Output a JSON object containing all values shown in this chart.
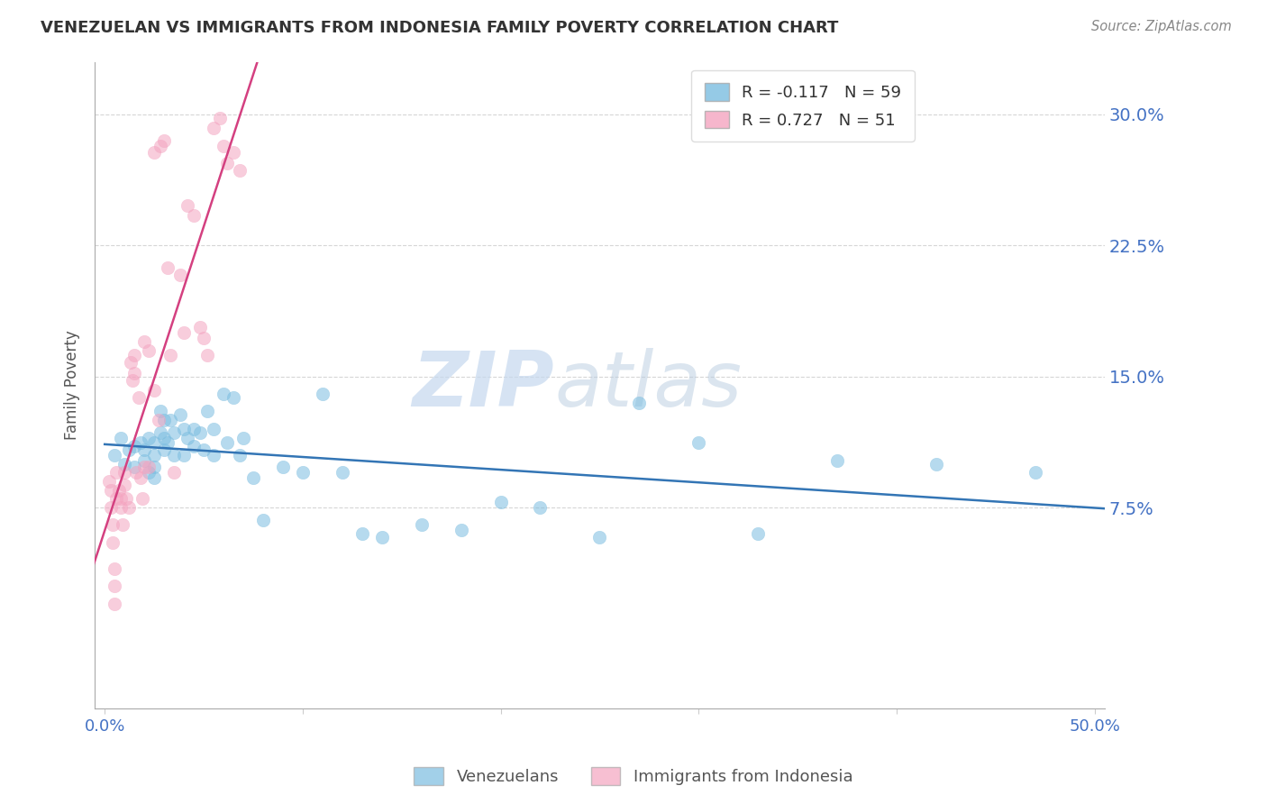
{
  "title": "VENEZUELAN VS IMMIGRANTS FROM INDONESIA FAMILY POVERTY CORRELATION CHART",
  "source": "Source: ZipAtlas.com",
  "ylabel": "Family Poverty",
  "y_ticks": [
    0.075,
    0.15,
    0.225,
    0.3
  ],
  "y_tick_labels": [
    "7.5%",
    "15.0%",
    "22.5%",
    "30.0%"
  ],
  "xlim": [
    -0.005,
    0.505
  ],
  "ylim": [
    -0.04,
    0.33
  ],
  "legend_label1": "Venezuelans",
  "legend_label2": "Immigrants from Indonesia",
  "legend_r1": "R = -0.117",
  "legend_n1": "N = 59",
  "legend_r2": "R = 0.727",
  "legend_n2": "N = 51",
  "watermark1": "ZIP",
  "watermark2": "atlas",
  "blue_color": "#7bbde0",
  "pink_color": "#f4a4c0",
  "blue_line_color": "#3375b5",
  "pink_line_color": "#d44080",
  "venezuelan_x": [
    0.005,
    0.008,
    0.01,
    0.012,
    0.015,
    0.015,
    0.018,
    0.02,
    0.02,
    0.022,
    0.022,
    0.025,
    0.025,
    0.025,
    0.025,
    0.028,
    0.028,
    0.03,
    0.03,
    0.03,
    0.032,
    0.033,
    0.035,
    0.035,
    0.038,
    0.04,
    0.04,
    0.042,
    0.045,
    0.045,
    0.048,
    0.05,
    0.052,
    0.055,
    0.055,
    0.06,
    0.062,
    0.065,
    0.068,
    0.07,
    0.075,
    0.08,
    0.09,
    0.1,
    0.11,
    0.12,
    0.13,
    0.14,
    0.16,
    0.18,
    0.2,
    0.22,
    0.25,
    0.27,
    0.3,
    0.33,
    0.37,
    0.42,
    0.47
  ],
  "venezuelan_y": [
    0.105,
    0.115,
    0.1,
    0.108,
    0.11,
    0.098,
    0.112,
    0.108,
    0.102,
    0.095,
    0.115,
    0.112,
    0.105,
    0.098,
    0.092,
    0.13,
    0.118,
    0.125,
    0.115,
    0.108,
    0.112,
    0.125,
    0.118,
    0.105,
    0.128,
    0.12,
    0.105,
    0.115,
    0.12,
    0.11,
    0.118,
    0.108,
    0.13,
    0.12,
    0.105,
    0.14,
    0.112,
    0.138,
    0.105,
    0.115,
    0.092,
    0.068,
    0.098,
    0.095,
    0.14,
    0.095,
    0.06,
    0.058,
    0.065,
    0.062,
    0.078,
    0.075,
    0.058,
    0.135,
    0.112,
    0.06,
    0.102,
    0.1,
    0.095
  ],
  "indonesia_x": [
    0.002,
    0.003,
    0.003,
    0.004,
    0.004,
    0.005,
    0.005,
    0.005,
    0.006,
    0.006,
    0.007,
    0.008,
    0.008,
    0.009,
    0.01,
    0.01,
    0.011,
    0.012,
    0.013,
    0.014,
    0.015,
    0.015,
    0.016,
    0.017,
    0.018,
    0.019,
    0.02,
    0.02,
    0.022,
    0.022,
    0.025,
    0.025,
    0.027,
    0.028,
    0.03,
    0.032,
    0.033,
    0.035,
    0.038,
    0.04,
    0.042,
    0.045,
    0.048,
    0.05,
    0.052,
    0.055,
    0.058,
    0.06,
    0.062,
    0.065,
    0.068
  ],
  "indonesia_y": [
    0.09,
    0.085,
    0.075,
    0.065,
    0.055,
    0.04,
    0.03,
    0.02,
    0.095,
    0.08,
    0.085,
    0.08,
    0.075,
    0.065,
    0.095,
    0.088,
    0.08,
    0.075,
    0.158,
    0.148,
    0.162,
    0.152,
    0.095,
    0.138,
    0.092,
    0.08,
    0.17,
    0.098,
    0.165,
    0.098,
    0.142,
    0.278,
    0.125,
    0.282,
    0.285,
    0.212,
    0.162,
    0.095,
    0.208,
    0.175,
    0.248,
    0.242,
    0.178,
    0.172,
    0.162,
    0.292,
    0.298,
    0.282,
    0.272,
    0.278,
    0.268
  ]
}
